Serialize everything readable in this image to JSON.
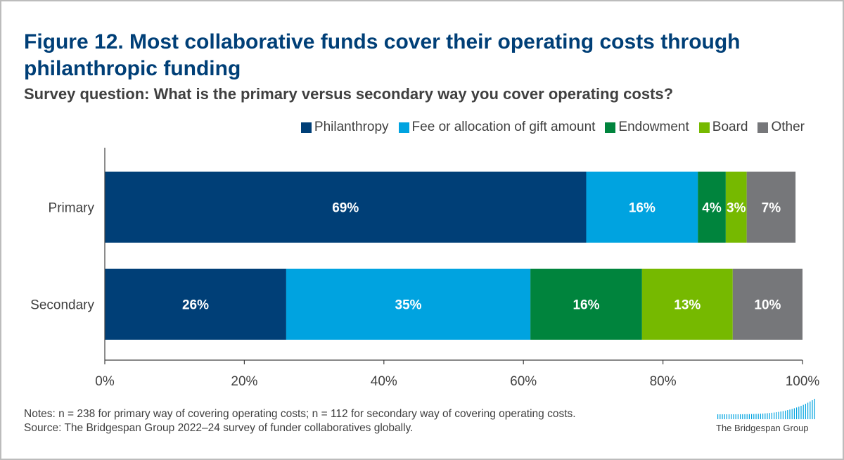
{
  "title": "Figure 12. Most collaborative funds cover their operating costs through philanthropic funding",
  "subtitle": "Survey question: What is the primary versus secondary way you cover operating costs?",
  "legend": [
    {
      "label": "Philanthropy",
      "color": "#003f77"
    },
    {
      "label": "Fee or allocation of gift amount",
      "color": "#00a3e0"
    },
    {
      "label": "Endowment",
      "color": "#00843d"
    },
    {
      "label": "Board",
      "color": "#76b900"
    },
    {
      "label": "Other",
      "color": "#76777a"
    }
  ],
  "chart_data": {
    "type": "bar",
    "orientation": "horizontal",
    "stacked": true,
    "categories": [
      "Primary",
      "Secondary"
    ],
    "series": [
      {
        "name": "Philanthropy",
        "color": "#003f77",
        "values": [
          69,
          26
        ]
      },
      {
        "name": "Fee or allocation of gift amount",
        "color": "#00a3e0",
        "values": [
          16,
          35
        ]
      },
      {
        "name": "Endowment",
        "color": "#00843d",
        "values": [
          4,
          16
        ]
      },
      {
        "name": "Board",
        "color": "#76b900",
        "values": [
          3,
          13
        ]
      },
      {
        "name": "Other",
        "color": "#76777a",
        "values": [
          7,
          10
        ]
      }
    ],
    "xlim": [
      0,
      100
    ],
    "x_ticks": [
      "0%",
      "20%",
      "40%",
      "60%",
      "80%",
      "100%"
    ],
    "value_suffix": "%",
    "xlabel": "",
    "ylabel": "",
    "grid": false,
    "legend_position": "top-right"
  },
  "notes": {
    "line1": "Notes: n = 238 for primary way of covering operating costs; n = 112 for secondary way of covering operating costs.",
    "line2": "Source: The Bridgespan Group 2022–24 survey of funder collaboratives globally."
  },
  "logo": {
    "text": "The Bridgespan Group"
  }
}
